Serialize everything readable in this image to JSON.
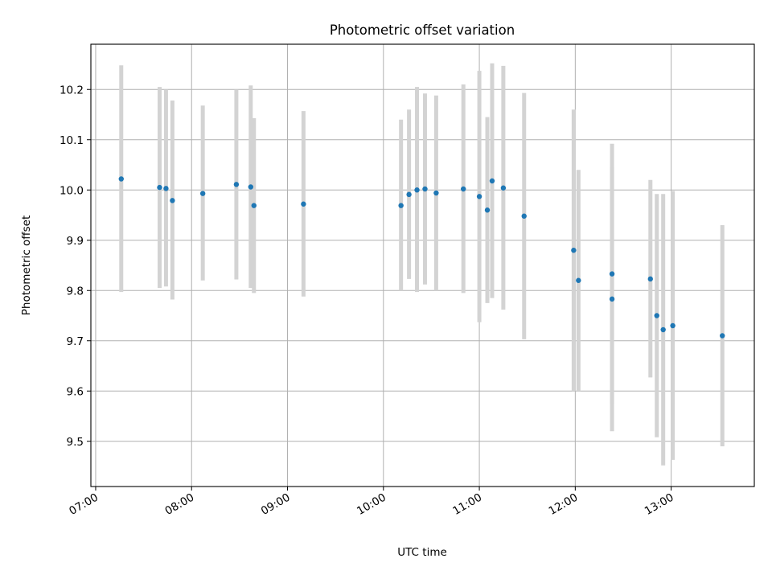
{
  "chart_data": {
    "type": "scatter",
    "title": "Photometric offset variation",
    "xlabel": "UTC time",
    "ylabel": "Photometric offset",
    "xlim": [
      "06:57",
      "13:52"
    ],
    "ylim": [
      9.41,
      10.29
    ],
    "grid": true,
    "x_ticks": [
      "07:00",
      "08:00",
      "09:00",
      "10:00",
      "11:00",
      "12:00",
      "13:00"
    ],
    "y_ticks": [
      9.5,
      9.6,
      9.7,
      9.8,
      9.9,
      10.0,
      10.1,
      10.2
    ],
    "y_tick_labels": [
      "9.5",
      "9.6",
      "9.7",
      "9.8",
      "9.9",
      "10.0",
      "10.1",
      "10.2"
    ],
    "colors": {
      "points": "#1f77b4",
      "errorbars": "#d3d3d3",
      "grid": "#b0b0b0"
    },
    "points": [
      {
        "x": "07:16",
        "y": 10.022,
        "ymin": 9.797,
        "ymax": 10.248
      },
      {
        "x": "07:40",
        "y": 10.005,
        "ymin": 9.805,
        "ymax": 10.205
      },
      {
        "x": "07:44",
        "y": 10.003,
        "ymin": 9.808,
        "ymax": 10.2
      },
      {
        "x": "07:48",
        "y": 9.979,
        "ymin": 9.782,
        "ymax": 10.178
      },
      {
        "x": "08:07",
        "y": 9.993,
        "ymin": 9.82,
        "ymax": 10.168
      },
      {
        "x": "08:28",
        "y": 10.011,
        "ymin": 9.822,
        "ymax": 10.2
      },
      {
        "x": "08:37",
        "y": 10.006,
        "ymin": 9.805,
        "ymax": 10.208
      },
      {
        "x": "08:39",
        "y": 9.969,
        "ymin": 9.795,
        "ymax": 10.143
      },
      {
        "x": "09:10",
        "y": 9.972,
        "ymin": 9.788,
        "ymax": 10.157
      },
      {
        "x": "10:11",
        "y": 9.969,
        "ymin": 9.8,
        "ymax": 10.14
      },
      {
        "x": "10:16",
        "y": 9.991,
        "ymin": 9.823,
        "ymax": 10.16
      },
      {
        "x": "10:21",
        "y": 10.0,
        "ymin": 9.797,
        "ymax": 10.205
      },
      {
        "x": "10:26",
        "y": 10.002,
        "ymin": 9.812,
        "ymax": 10.192
      },
      {
        "x": "10:33",
        "y": 9.994,
        "ymin": 9.8,
        "ymax": 10.188
      },
      {
        "x": "10:50",
        "y": 10.002,
        "ymin": 9.795,
        "ymax": 10.21
      },
      {
        "x": "11:00",
        "y": 9.987,
        "ymin": 9.737,
        "ymax": 10.237
      },
      {
        "x": "11:05",
        "y": 9.96,
        "ymin": 9.775,
        "ymax": 10.145
      },
      {
        "x": "11:08",
        "y": 10.018,
        "ymin": 9.785,
        "ymax": 10.252
      },
      {
        "x": "11:15",
        "y": 10.004,
        "ymin": 9.762,
        "ymax": 10.247
      },
      {
        "x": "11:28",
        "y": 9.948,
        "ymin": 9.703,
        "ymax": 10.193
      },
      {
        "x": "11:59",
        "y": 9.88,
        "ymin": 9.6,
        "ymax": 10.16
      },
      {
        "x": "12:02",
        "y": 9.82,
        "ymin": 9.6,
        "ymax": 10.04
      },
      {
        "x": "12:23",
        "y": 9.833,
        "ymin": 9.575,
        "ymax": 10.092
      },
      {
        "x": "12:23",
        "y": 9.783,
        "ymin": 9.52,
        "ymax": 10.045
      },
      {
        "x": "12:47",
        "y": 9.823,
        "ymin": 9.627,
        "ymax": 10.02
      },
      {
        "x": "12:51",
        "y": 9.75,
        "ymin": 9.508,
        "ymax": 9.992
      },
      {
        "x": "12:55",
        "y": 9.722,
        "ymin": 9.452,
        "ymax": 9.992
      },
      {
        "x": "13:01",
        "y": 9.73,
        "ymin": 9.463,
        "ymax": 9.998
      },
      {
        "x": "13:32",
        "y": 9.71,
        "ymin": 9.49,
        "ymax": 9.93
      }
    ]
  }
}
